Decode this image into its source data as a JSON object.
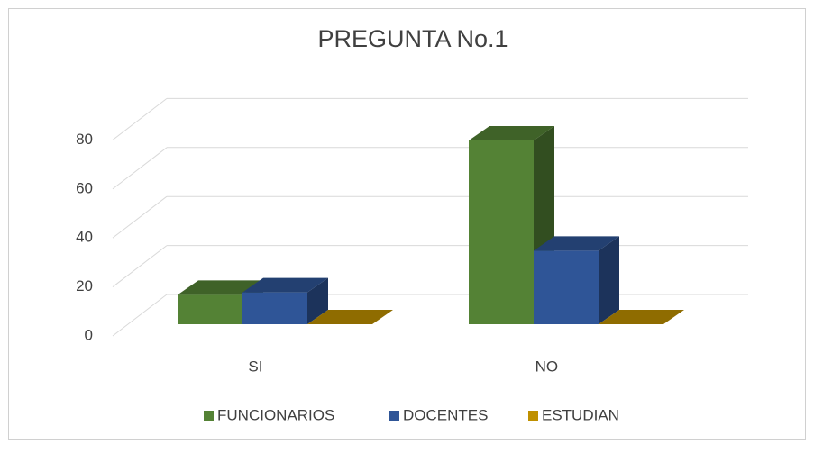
{
  "chart_data": {
    "type": "bar3d",
    "title": "PREGUNTA No.1",
    "categories": [
      "SI",
      "NO"
    ],
    "series": [
      {
        "name": "FUNCIONARIOS",
        "color": "#548235",
        "values": [
          12,
          75
        ]
      },
      {
        "name": "DOCENTES",
        "color": "#2f5597",
        "values": [
          13,
          30
        ]
      },
      {
        "name": "ESTUDIAN",
        "color": "#bf9000",
        "values": [
          0,
          0
        ]
      }
    ],
    "ylim": [
      0,
      80
    ],
    "yticks": [
      0,
      20,
      40,
      60,
      80
    ],
    "grid": true,
    "legend": "bottom"
  }
}
